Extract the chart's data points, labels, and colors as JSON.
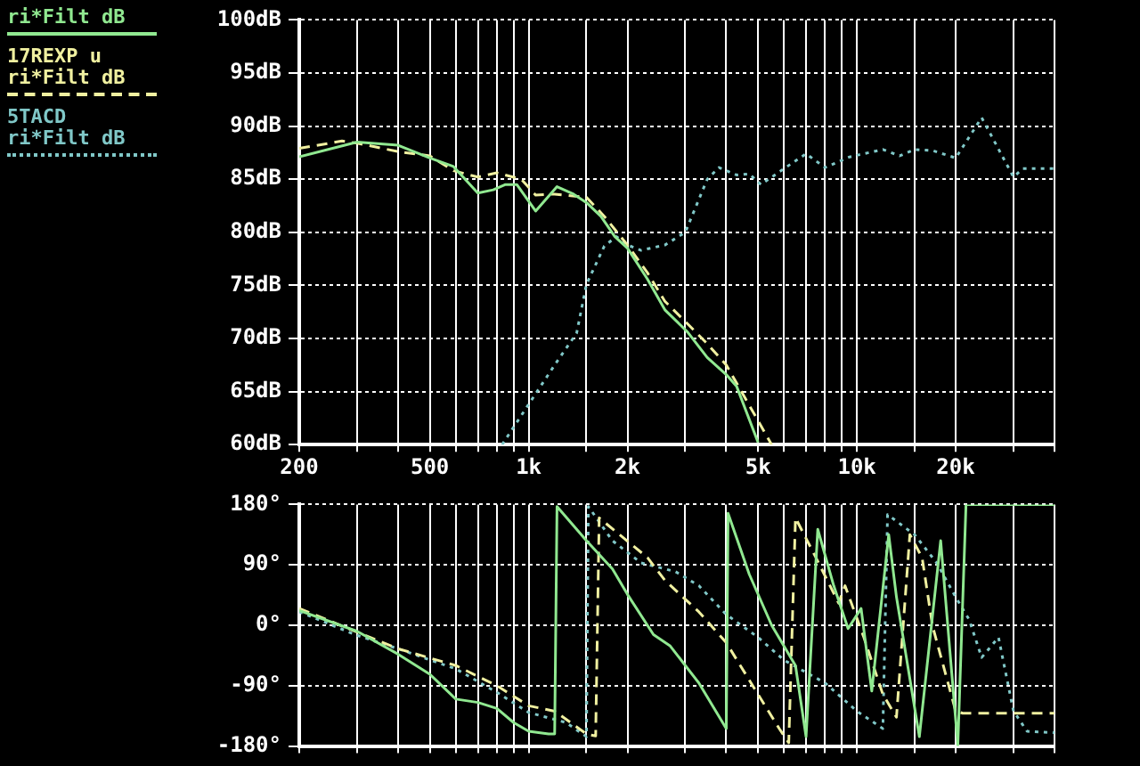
{
  "chart_data": [
    {
      "type": "line",
      "log": "x",
      "grid": true,
      "legend": "top left",
      "marker": "none",
      "xlim": [
        200,
        40000
      ],
      "xticks": [
        {
          "value": 200,
          "label": "200"
        },
        {
          "value": 300,
          "label": null
        },
        {
          "value": 400,
          "label": null
        },
        {
          "value": 500,
          "label": "500"
        },
        {
          "value": 600,
          "label": null
        },
        {
          "value": 700,
          "label": null
        },
        {
          "value": 800,
          "label": null
        },
        {
          "value": 900,
          "label": null
        },
        {
          "value": 1000,
          "label": "1k"
        },
        {
          "value": 1500,
          "label": null
        },
        {
          "value": 2000,
          "label": "2k"
        },
        {
          "value": 3000,
          "label": null
        },
        {
          "value": 4000,
          "label": null
        },
        {
          "value": 5000,
          "label": "5k"
        },
        {
          "value": 6000,
          "label": null
        },
        {
          "value": 7000,
          "label": null
        },
        {
          "value": 8000,
          "label": null
        },
        {
          "value": 9000,
          "label": null
        },
        {
          "value": 10000,
          "label": "10k"
        },
        {
          "value": 15000,
          "label": null
        },
        {
          "value": 20000,
          "label": "20k"
        },
        {
          "value": 30000,
          "label": null
        },
        {
          "value": 40000,
          "label": null
        }
      ],
      "ylim": [
        60,
        100
      ],
      "yticks": [
        {
          "value": 60,
          "label": "60dB"
        },
        {
          "value": 65,
          "label": "65dB"
        },
        {
          "value": 70,
          "label": "70dB"
        },
        {
          "value": 75,
          "label": "75dB"
        },
        {
          "value": 80,
          "label": "80dB"
        },
        {
          "value": 85,
          "label": "85dB"
        },
        {
          "value": 90,
          "label": "90dB"
        },
        {
          "value": 95,
          "label": "95dB"
        },
        {
          "value": 100,
          "label": "100dB"
        }
      ],
      "series": [
        {
          "name": "ri*Filt dB",
          "color": "#90e890",
          "line_style": "solid",
          "x": [
            200,
            300,
            400,
            500,
            590,
            700,
            780,
            850,
            920,
            1050,
            1220,
            1370,
            1500,
            1660,
            1830,
            2000,
            2300,
            2600,
            3050,
            3500,
            4000,
            4300,
            5000
          ],
          "values": [
            87.1,
            88.5,
            88.2,
            87.0,
            86.2,
            83.7,
            84.0,
            84.5,
            84.5,
            82.0,
            84.3,
            83.6,
            82.8,
            81.5,
            79.6,
            78.5,
            75.6,
            72.7,
            70.6,
            68.2,
            66.6,
            65.5,
            60.2
          ]
        },
        {
          "name": "17REXP u\nri*Filt dB",
          "color": "#f0f0a0",
          "line_style": "dashed",
          "x": [
            200,
            270,
            300,
            400,
            500,
            590,
            700,
            800,
            950,
            1050,
            1200,
            1500,
            1700,
            2000,
            2300,
            2600,
            3000,
            3500,
            4000,
            4300,
            5500
          ],
          "values": [
            87.9,
            88.6,
            88.4,
            87.6,
            87.2,
            85.8,
            85.2,
            85.6,
            85.0,
            83.5,
            83.6,
            83.3,
            81.5,
            78.8,
            76.2,
            73.5,
            71.6,
            69.5,
            67.5,
            65.8,
            60
          ]
        },
        {
          "name": "5TACD\nri*Filt dB",
          "color": "#80c8c8",
          "line_style": "dotted",
          "x": [
            830,
            1000,
            1200,
            1400,
            1500,
            1700,
            1850,
            2000,
            2200,
            2600,
            3000,
            3500,
            3800,
            4300,
            4700,
            5100,
            6000,
            7000,
            8000,
            9500,
            12000,
            13500,
            15000,
            17000,
            20000,
            24000,
            30000,
            32000,
            40000
          ],
          "values": [
            60,
            63.8,
            67.5,
            70.5,
            75.1,
            78.7,
            79.6,
            78.8,
            78.3,
            78.8,
            80,
            85,
            86.1,
            85.4,
            85.5,
            84.5,
            86,
            87.4,
            86.1,
            87.1,
            87.8,
            87.2,
            87.8,
            87.7,
            87.0,
            90.8,
            85.2,
            86,
            86
          ]
        }
      ]
    },
    {
      "type": "line",
      "log": "x",
      "grid": true,
      "marker": "none",
      "tick_labels": "y",
      "xlim": [
        200,
        40000
      ],
      "xticks": [
        {
          "value": 200,
          "label": null
        },
        {
          "value": 300,
          "label": null
        },
        {
          "value": 400,
          "label": null
        },
        {
          "value": 500,
          "label": null
        },
        {
          "value": 600,
          "label": null
        },
        {
          "value": 700,
          "label": null
        },
        {
          "value": 800,
          "label": null
        },
        {
          "value": 900,
          "label": null
        },
        {
          "value": 1000,
          "label": null
        },
        {
          "value": 1500,
          "label": null
        },
        {
          "value": 2000,
          "label": null
        },
        {
          "value": 3000,
          "label": null
        },
        {
          "value": 4000,
          "label": null
        },
        {
          "value": 5000,
          "label": null
        },
        {
          "value": 6000,
          "label": null
        },
        {
          "value": 7000,
          "label": null
        },
        {
          "value": 8000,
          "label": null
        },
        {
          "value": 9000,
          "label": null
        },
        {
          "value": 10000,
          "label": null
        },
        {
          "value": 15000,
          "label": null
        },
        {
          "value": 20000,
          "label": null
        },
        {
          "value": 30000,
          "label": null
        },
        {
          "value": 40000,
          "label": null
        }
      ],
      "ylim": [
        -180,
        180
      ],
      "yticks": [
        {
          "value": -180,
          "label": "-180°"
        },
        {
          "value": -90,
          "label": "-90°"
        },
        {
          "value": 0,
          "label": "0°"
        },
        {
          "value": 90,
          "label": "90°"
        },
        {
          "value": 180,
          "label": "180°"
        }
      ],
      "series": [
        {
          "color": "#90e890",
          "line_style": "solid",
          "x": [
            200,
            300,
            400,
            500,
            600,
            700,
            800,
            900,
            1000,
            1150,
            1200,
            1220,
            1500,
            1800,
            2000,
            2400,
            2700,
            3300,
            4000,
            4050,
            4700,
            5500,
            6500,
            7000,
            7600,
            8500,
            9400,
            10300,
            11100,
            12500,
            13200,
            15500,
            18000,
            20300,
            21500,
            40000
          ],
          "values": [
            22,
            -9,
            -43,
            -73,
            -110,
            -115,
            -124,
            -145,
            -158,
            -162,
            -162,
            177,
            126,
            84,
            46,
            -14,
            -31,
            -86,
            -154,
            167,
            76,
            0,
            -60,
            -166,
            143,
            59,
            -5,
            25,
            -98,
            135,
            42,
            -166,
            126,
            -179,
            180,
            180
          ]
        },
        {
          "color": "#f0f0a0",
          "line_style": "dashed",
          "x": [
            200,
            400,
            600,
            800,
            1000,
            1200,
            1500,
            1600,
            1640,
            2300,
            2600,
            3300,
            4000,
            5000,
            5800,
            6200,
            6500,
            7500,
            8800,
            9200,
            10500,
            12000,
            13200,
            14500,
            15800,
            17000,
            20000,
            21000,
            40000
          ],
          "values": [
            25,
            -35,
            -60,
            -90,
            -120,
            -128,
            -162,
            -165,
            160,
            101,
            67,
            20,
            -26,
            -103,
            -154,
            -175,
            160,
            101,
            33,
            59,
            -18,
            -103,
            -137,
            135,
            101,
            -1,
            -128,
            -131,
            -131
          ]
        },
        {
          "color": "#80c8c8",
          "line_style": "dotted",
          "x": [
            200,
            300,
            400,
            600,
            800,
            1000,
            1300,
            1500,
            1520,
            1800,
            2200,
            2800,
            3300,
            4000,
            5000,
            6000,
            8000,
            10000,
            12000,
            12400,
            15000,
            17500,
            20000,
            22000,
            24000,
            27000,
            30000,
            33000,
            40000
          ],
          "values": [
            20,
            -15,
            -35,
            -65,
            -100,
            -130,
            -145,
            -166,
            177,
            126,
            93,
            80,
            59,
            16,
            -18,
            -52,
            -86,
            -128,
            -154,
            165,
            135,
            93,
            42,
            8,
            -48,
            -18,
            -128,
            -158,
            -160
          ]
        }
      ]
    }
  ]
}
